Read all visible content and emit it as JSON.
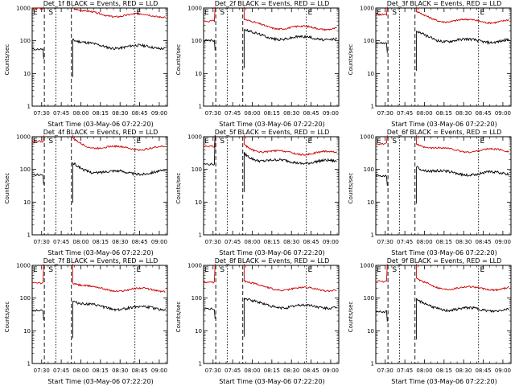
{
  "chart_data": [
    {
      "type": "line",
      "title": "Det_1f BLACK = Events, RED = LLD",
      "xlabel": "Start Time (03-May-06 07:22:20)",
      "ylabel": "Counts/sec",
      "ylim": [
        1,
        1000
      ],
      "yscale": "log",
      "yticks": [
        "1",
        "10",
        "100",
        "1000"
      ],
      "xticks": [
        "07:30",
        "07:45",
        "08:00",
        "08:15",
        "08:30",
        "08:45",
        "09:00"
      ],
      "markers": [
        "E",
        "S",
        "E"
      ],
      "series": [
        {
          "name": "RED = LLD",
          "color": "#cc0000"
        },
        {
          "name": "BLACK = Events",
          "color": "#000000"
        }
      ]
    },
    {
      "type": "line",
      "title": "Det_2f BLACK = Events, RED = LLD",
      "xlabel": "Start Time (03-May-06 07:22:20)",
      "ylabel": "Counts/sec",
      "ylim": [
        1,
        1000
      ],
      "yscale": "log",
      "yticks": [
        "1",
        "10",
        "100",
        "1000"
      ],
      "xticks": [
        "07:30",
        "07:45",
        "08:00",
        "08:15",
        "08:30",
        "08:45",
        "09:00"
      ],
      "markers": [
        "E",
        "S",
        "E"
      ],
      "series": [
        {
          "name": "RED = LLD",
          "color": "#cc0000"
        },
        {
          "name": "BLACK = Events",
          "color": "#000000"
        }
      ]
    },
    {
      "type": "line",
      "title": "Det_3f BLACK = Events, RED = LLD",
      "xlabel": "Start Time (03-May-06 07:22:20)",
      "ylabel": "Counts/sec",
      "ylim": [
        1,
        1000
      ],
      "yscale": "log",
      "yticks": [
        "1",
        "10",
        "100",
        "1000"
      ],
      "xticks": [
        "07:30",
        "07:45",
        "08:00",
        "08:15",
        "08:30",
        "08:45",
        "09:00"
      ],
      "markers": [
        "E",
        "S",
        "E"
      ],
      "series": [
        {
          "name": "RED = LLD",
          "color": "#cc0000"
        },
        {
          "name": "BLACK = Events",
          "color": "#000000"
        }
      ]
    },
    {
      "type": "line",
      "title": "Det_4f BLACK = Events, RED = LLD",
      "xlabel": "Start Time (03-May-06 07:22:20)",
      "ylabel": "Counts/sec",
      "ylim": [
        1,
        1000
      ],
      "yscale": "log",
      "yticks": [
        "1",
        "10",
        "100",
        "1000"
      ],
      "xticks": [
        "07:30",
        "07:45",
        "08:00",
        "08:15",
        "08:30",
        "08:45",
        "09:00"
      ],
      "markers": [
        "E",
        "S",
        "E"
      ],
      "series": [
        {
          "name": "RED = LLD",
          "color": "#cc0000"
        },
        {
          "name": "BLACK = Events",
          "color": "#000000"
        }
      ]
    },
    {
      "type": "line",
      "title": "Det_5f BLACK = Events, RED = LLD",
      "xlabel": "Start Time (03-May-06 07:22:20)",
      "ylabel": "Counts/sec",
      "ylim": [
        1,
        1000
      ],
      "yscale": "log",
      "yticks": [
        "1",
        "10",
        "100",
        "1000"
      ],
      "xticks": [
        "07:30",
        "07:45",
        "08:00",
        "08:15",
        "08:30",
        "08:45",
        "09:00"
      ],
      "markers": [
        "E",
        "S",
        "E"
      ],
      "series": [
        {
          "name": "RED = LLD",
          "color": "#cc0000"
        },
        {
          "name": "BLACK = Events",
          "color": "#000000"
        }
      ]
    },
    {
      "type": "line",
      "title": "Det_6f BLACK = Events, RED = LLD",
      "xlabel": "Start Time (03-May-06 07:22:20)",
      "ylabel": "Counts/sec",
      "ylim": [
        1,
        1000
      ],
      "yscale": "log",
      "yticks": [
        "1",
        "10",
        "100",
        "1000"
      ],
      "xticks": [
        "07:30",
        "07:45",
        "08:00",
        "08:15",
        "08:30",
        "08:45",
        "09:00"
      ],
      "markers": [
        "E",
        "S",
        "E"
      ],
      "series": [
        {
          "name": "RED = LLD",
          "color": "#cc0000"
        },
        {
          "name": "BLACK = Events",
          "color": "#000000"
        }
      ]
    },
    {
      "type": "line",
      "title": "Det_7f BLACK = Events, RED = LLD",
      "xlabel": "Start Time (03-May-06 07:22:20)",
      "ylabel": "Counts/sec",
      "ylim": [
        1,
        1000
      ],
      "yscale": "log",
      "yticks": [
        "1",
        "10",
        "100",
        "1000"
      ],
      "xticks": [
        "07:30",
        "07:45",
        "08:00",
        "08:15",
        "08:30",
        "08:45",
        "09:00"
      ],
      "markers": [
        "E",
        "S",
        "E"
      ],
      "series": [
        {
          "name": "RED = LLD",
          "color": "#cc0000"
        },
        {
          "name": "BLACK = Events",
          "color": "#000000"
        }
      ]
    },
    {
      "type": "line",
      "title": "Det_8f BLACK = Events, RED = LLD",
      "xlabel": "Start Time (03-May-06 07:22:20)",
      "ylabel": "Counts/sec",
      "ylim": [
        1,
        1000
      ],
      "yscale": "log",
      "yticks": [
        "1",
        "10",
        "100",
        "1000"
      ],
      "xticks": [
        "07:30",
        "07:45",
        "08:00",
        "08:15",
        "08:30",
        "08:45",
        "09:00"
      ],
      "markers": [
        "E",
        "S",
        "E"
      ],
      "series": [
        {
          "name": "RED = LLD",
          "color": "#cc0000"
        },
        {
          "name": "BLACK = Events",
          "color": "#000000"
        }
      ]
    },
    {
      "type": "line",
      "title": "Det_9f BLACK = Events, RED = LLD",
      "xlabel": "Start Time (03-May-06 07:22:20)",
      "ylabel": "Counts/sec",
      "ylim": [
        1,
        1000
      ],
      "yscale": "log",
      "yticks": [
        "1",
        "10",
        "100",
        "1000"
      ],
      "xticks": [
        "07:30",
        "07:45",
        "08:00",
        "08:15",
        "08:30",
        "08:45",
        "09:00"
      ],
      "markers": [
        "E",
        "S",
        "E"
      ],
      "series": [
        {
          "name": "RED = LLD",
          "color": "#cc0000"
        },
        {
          "name": "BLACK = Events",
          "color": "#000000"
        }
      ]
    }
  ],
  "levels": [
    {
      "red": 600,
      "black": 65
    },
    {
      "red": 250,
      "black": 120
    },
    {
      "red": 400,
      "black": 100
    },
    {
      "red": 450,
      "black": 80
    },
    {
      "red": 320,
      "black": 170
    },
    {
      "red": 380,
      "black": 75
    },
    {
      "red": 180,
      "black": 50
    },
    {
      "red": 190,
      "black": 55
    },
    {
      "red": 200,
      "black": 45
    }
  ]
}
